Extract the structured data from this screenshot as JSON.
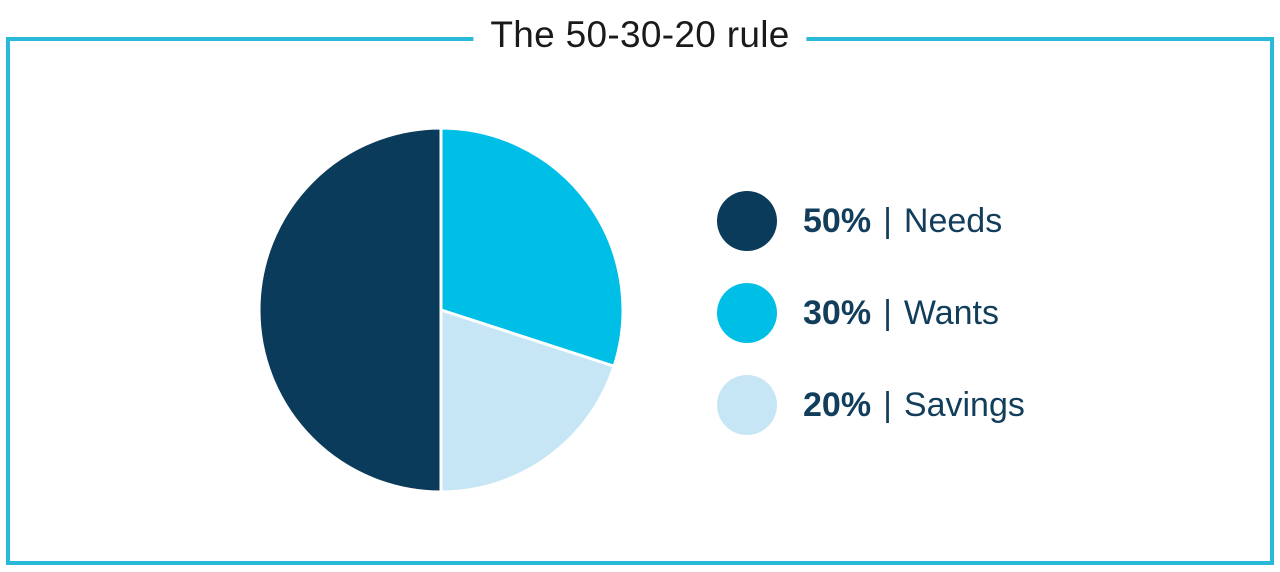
{
  "chart_data": {
    "type": "pie",
    "title": "The 50-30-20 rule",
    "slices": [
      {
        "label": "Wants",
        "value": 30,
        "percent_label": "30%",
        "color": "#00BFE7"
      },
      {
        "label": "Savings",
        "value": 20,
        "percent_label": "20%",
        "color": "#C7E6F5"
      },
      {
        "label": "Needs",
        "value": 50,
        "percent_label": "50%",
        "color": "#0B3B5A"
      }
    ],
    "draw": {
      "start": "12-oclock",
      "direction": "clockwise"
    },
    "slice_separator_color": "#FFFFFF",
    "legend_position": "right",
    "legend_order": [
      "Needs",
      "Wants",
      "Savings"
    ]
  },
  "legend": {
    "items": [
      {
        "percent": "50%",
        "separator": "|",
        "label": "Needs",
        "swatch_color": "#0B3B5A"
      },
      {
        "percent": "30%",
        "separator": "|",
        "label": "Wants",
        "swatch_color": "#00BFE7"
      },
      {
        "percent": "20%",
        "separator": "|",
        "label": "Savings",
        "swatch_color": "#C7E6F5"
      }
    ]
  },
  "colors": {
    "background": "#FFFFFF",
    "frame_border": "#2BB9DA",
    "title_text": "#1A1A1A",
    "legend_text": "#123E5C"
  }
}
